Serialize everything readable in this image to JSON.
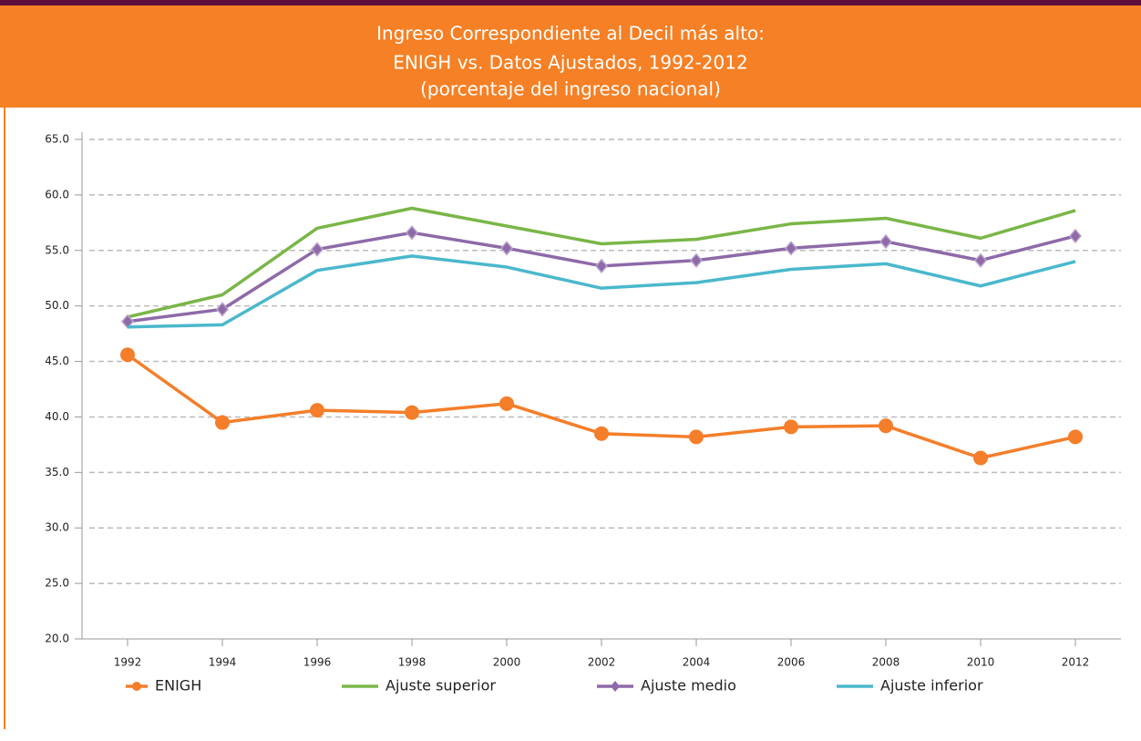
{
  "chart_data": {
    "type": "line",
    "title": [
      "Ingreso Correspondiente al Decil más alto:",
      "ENIGH vs. Datos Ajustados, 1992-2012"
    ],
    "subtitle": "(porcentaje del ingreso nacional)",
    "categories": [
      "1992",
      "1994",
      "1996",
      "1998",
      "2000",
      "2002",
      "2004",
      "2006",
      "2008",
      "2010",
      "2012"
    ],
    "series": [
      {
        "name": "ENIGH",
        "color": "#f47e2a",
        "marker": "circle",
        "values": [
          45.6,
          39.5,
          40.6,
          40.4,
          41.2,
          38.5,
          38.2,
          39.1,
          39.2,
          36.3,
          38.2
        ]
      },
      {
        "name": "Ajuste superior",
        "color": "#7ab648",
        "marker": "none",
        "values": [
          49.0,
          51.0,
          57.0,
          58.8,
          57.2,
          55.6,
          56.0,
          57.4,
          57.9,
          56.1,
          58.6
        ]
      },
      {
        "name": "Ajuste medio",
        "color": "#8e6aa8",
        "marker": "diamond",
        "values": [
          48.6,
          49.7,
          55.1,
          56.6,
          55.2,
          53.6,
          54.1,
          55.2,
          55.8,
          54.1,
          56.3
        ]
      },
      {
        "name": "Ajuste inferior",
        "color": "#4bb8cc",
        "marker": "none",
        "values": [
          48.1,
          48.3,
          53.2,
          54.5,
          53.5,
          51.6,
          52.1,
          53.3,
          53.8,
          51.8,
          54.0
        ]
      }
    ],
    "ylim": [
      20,
      65
    ],
    "yticks": [
      {
        "value": 20,
        "label": "20.0"
      },
      {
        "value": 25,
        "label": "25.0"
      },
      {
        "value": 30,
        "label": "30.0"
      },
      {
        "value": 35,
        "label": "35.0"
      },
      {
        "value": 40,
        "label": "40.0"
      },
      {
        "value": 45,
        "label": "45.0"
      },
      {
        "value": 50,
        "label": "50.0"
      },
      {
        "value": 55,
        "label": "55.0"
      },
      {
        "value": 60,
        "label": "60.0"
      },
      {
        "value": 65,
        "label": "65.0"
      }
    ],
    "grid": true,
    "legend": "bottom"
  }
}
